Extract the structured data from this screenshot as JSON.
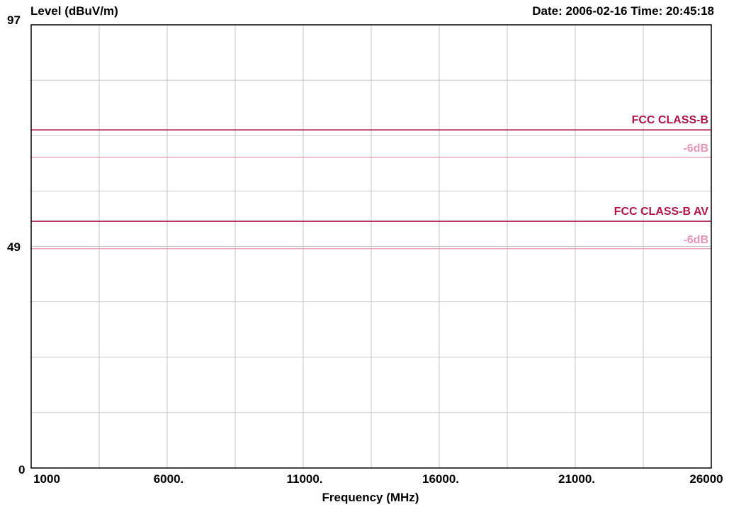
{
  "header": {
    "ylabel": "Level (dBuV/m)",
    "datetime": "Date: 2006-02-16  Time: 20:45:18"
  },
  "chart_data": {
    "type": "line",
    "xlabel": "Frequency (MHz)",
    "ylabel": "Level (dBuV/m)",
    "xlim": [
      1000,
      26000
    ],
    "ylim": [
      0,
      97
    ],
    "x_ticks": [
      "1000",
      "6000.",
      "11000.",
      "16000.",
      "21000.",
      "26000"
    ],
    "y_ticks": [
      "97",
      "49",
      "0"
    ],
    "grid": true,
    "limit_lines": [
      {
        "name": "FCC CLASS-B",
        "value": 74,
        "color": "#b0154a"
      },
      {
        "name": "FCC CLASS-B  AV",
        "value": 54,
        "color": "#b0154a"
      }
    ],
    "margin_lines": [
      {
        "label": "-6dB",
        "value": 68,
        "color": "#e596b4"
      },
      {
        "label": "-6dB",
        "value": 48,
        "color": "#e596b4"
      }
    ]
  }
}
